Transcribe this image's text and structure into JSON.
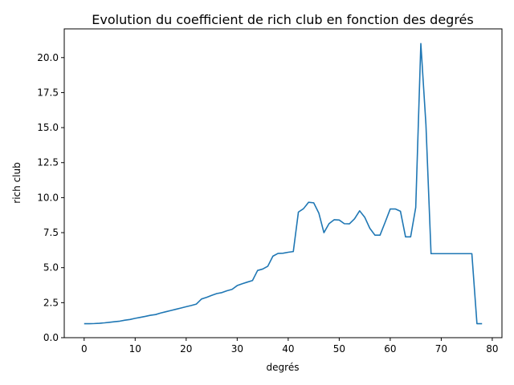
{
  "chart_data": {
    "type": "line",
    "title": "Evolution du coefficient de rich club en fonction des degrés",
    "xlabel": "degrés",
    "ylabel": "rich club",
    "xlim": [
      -3.9,
      81.9
    ],
    "ylim": [
      0,
      22.05
    ],
    "xticks": [
      "0",
      "10",
      "20",
      "30",
      "40",
      "50",
      "60",
      "70",
      "80"
    ],
    "yticks": [
      "0.0",
      "2.5",
      "5.0",
      "7.5",
      "10.0",
      "12.5",
      "15.0",
      "17.5",
      "20.0"
    ],
    "grid": false,
    "color": "#1f77b4",
    "series": [
      {
        "x": [
          0,
          1,
          2,
          3,
          4,
          5,
          6,
          7,
          8,
          9,
          10,
          11,
          12,
          13,
          14,
          15,
          16,
          17,
          18,
          19,
          20,
          21,
          22,
          23,
          24,
          25,
          26,
          27,
          28,
          29,
          30,
          31,
          32,
          33,
          34,
          35,
          36,
          37,
          38,
          39,
          40,
          41,
          42,
          43,
          44,
          45,
          46,
          47,
          48,
          49,
          50,
          51,
          52,
          53,
          54,
          55,
          56,
          57,
          58,
          59,
          60,
          61,
          62,
          63,
          64,
          65,
          66,
          67,
          68,
          69,
          70,
          71,
          72,
          73,
          74,
          75,
          76,
          77,
          78
        ],
        "y": [
          1.0,
          1.0,
          1.01,
          1.03,
          1.06,
          1.1,
          1.14,
          1.18,
          1.25,
          1.3,
          1.38,
          1.45,
          1.52,
          1.6,
          1.65,
          1.76,
          1.85,
          1.94,
          2.03,
          2.12,
          2.21,
          2.3,
          2.4,
          2.76,
          2.88,
          3.02,
          3.15,
          3.22,
          3.35,
          3.45,
          3.72,
          3.85,
          3.97,
          4.08,
          4.8,
          4.9,
          5.1,
          5.82,
          6.02,
          6.03,
          6.1,
          6.15,
          8.97,
          9.21,
          9.67,
          9.63,
          8.9,
          7.5,
          8.14,
          8.42,
          8.4,
          8.14,
          8.13,
          8.49,
          9.06,
          8.6,
          7.81,
          7.32,
          7.32,
          8.24,
          9.19,
          9.19,
          9.03,
          7.2,
          7.2,
          9.3,
          21.0,
          15.2,
          6.0,
          6.0,
          6.0,
          6.0,
          6.0,
          6.0,
          6.0,
          6.0,
          6.0,
          1.0,
          1.0
        ]
      }
    ]
  }
}
